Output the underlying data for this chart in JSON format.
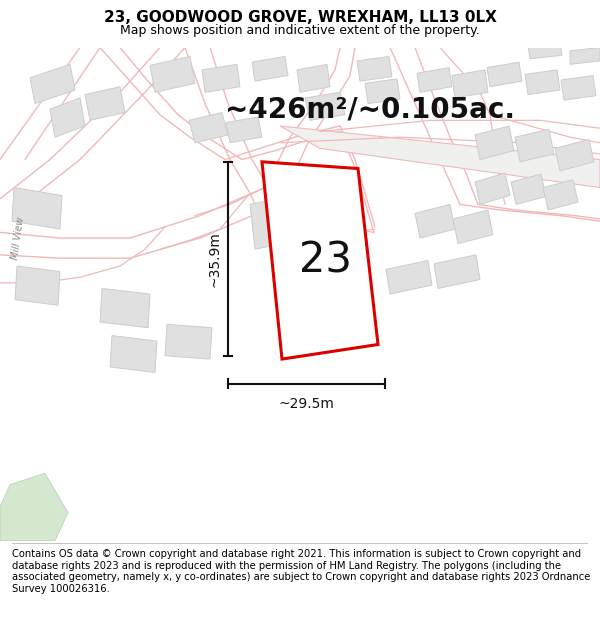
{
  "title": "23, GOODWOOD GROVE, WREXHAM, LL13 0LX",
  "subtitle": "Map shows position and indicative extent of the property.",
  "area_label": "~426m²/~0.105ac.",
  "width_label": "~29.5m",
  "height_label": "~35.9m",
  "plot_number": "23",
  "footer_text": "Contains OS data © Crown copyright and database right 2021. This information is subject to Crown copyright and database rights 2023 and is reproduced with the permission of HM Land Registry. The polygons (including the associated geometry, namely x, y co-ordinates) are subject to Crown copyright and database rights 2023 Ordnance Survey 100026316.",
  "bg_color": "#ffffff",
  "map_bg_color": "#ffffff",
  "road_outline_color": "#f0b8b8",
  "parcel_color": "#f0b8b8",
  "building_fill": "#e0e0e0",
  "building_edge": "#cccccc",
  "road_fill_light": "#f8f0f0",
  "green_fill": "#d4e8d0",
  "green_edge": "#b8d4b4",
  "plot_outline_color": "#dd0000",
  "dim_color": "#111111",
  "title_fontsize": 11,
  "subtitle_fontsize": 9,
  "area_fontsize": 20,
  "plot_number_fontsize": 30,
  "footer_fontsize": 7.2,
  "mill_view_fontsize": 7
}
